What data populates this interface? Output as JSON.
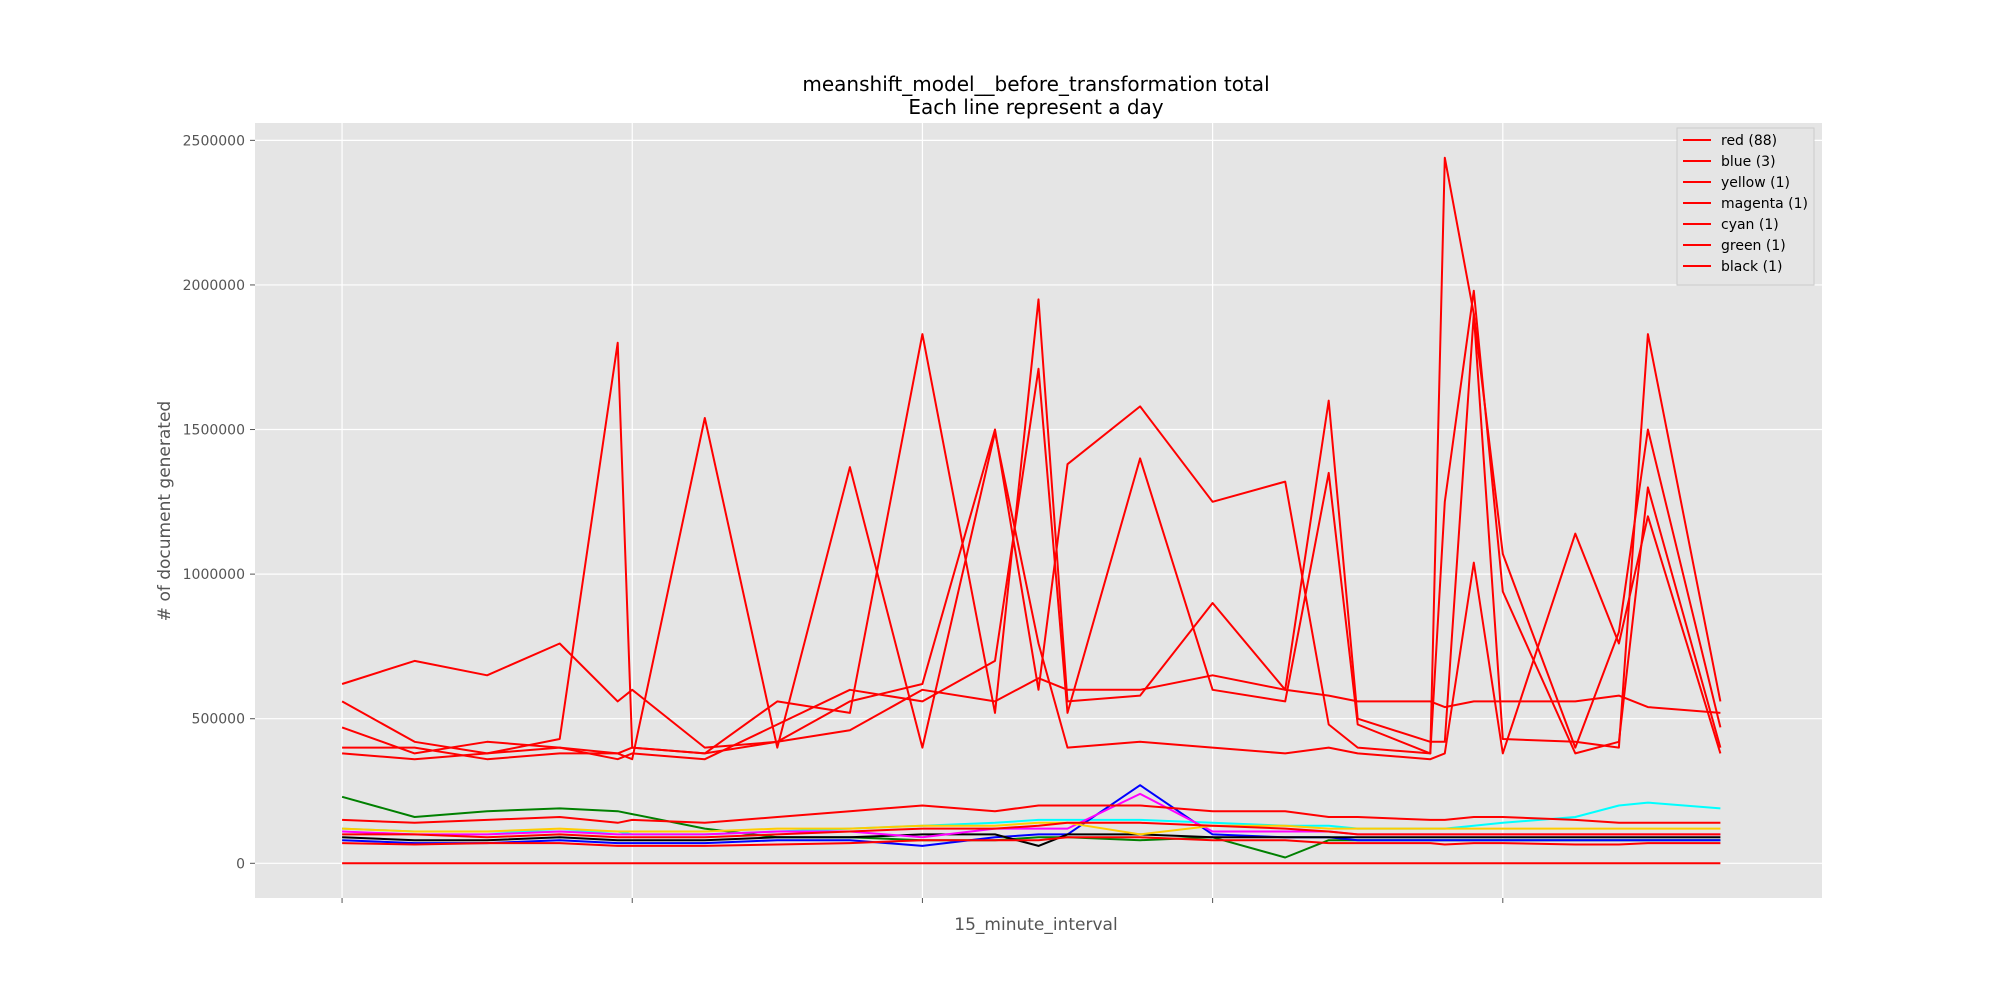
{
  "chart_data": {
    "type": "line",
    "title_line1": "meanshift_model__before_transformation total",
    "title_line2": "Each line represent a day",
    "xlabel": "15_minute_interval",
    "ylabel": "# of document generated",
    "ylim": [
      -120000,
      2560000
    ],
    "xlim": [
      -6,
      102
    ],
    "y_ticks": [
      0,
      500000,
      1000000,
      1500000,
      2000000,
      2500000
    ],
    "y_tick_labels": [
      "0",
      "500000",
      "1000000",
      "1500000",
      "2000000",
      "2500000"
    ],
    "x_ticks": [
      0,
      20,
      40,
      60,
      80
    ],
    "grid": true,
    "legend_position": "top-right",
    "legend": [
      {
        "label": "red (88)",
        "color": "#ff0000"
      },
      {
        "label": "blue (3)",
        "color": "#ff0000"
      },
      {
        "label": "yellow (1)",
        "color": "#ff0000"
      },
      {
        "label": "magenta (1)",
        "color": "#ff0000"
      },
      {
        "label": "cyan (1)",
        "color": "#ff0000"
      },
      {
        "label": "green (1)",
        "color": "#ff0000"
      },
      {
        "label": "black (1)",
        "color": "#ff0000"
      }
    ],
    "x": [
      0,
      5,
      10,
      15,
      19,
      20,
      25,
      30,
      35,
      40,
      45,
      48,
      50,
      55,
      60,
      65,
      68,
      70,
      75,
      76,
      78,
      80,
      85,
      88,
      90,
      95
    ],
    "series": [
      {
        "name": "red",
        "color": "#ff0000",
        "values": [
          560000,
          420000,
          380000,
          430000,
          1800000,
          400000,
          380000,
          560000,
          520000,
          1830000,
          520000,
          1950000,
          560000,
          580000,
          900000,
          600000,
          1600000,
          500000,
          420000,
          420000,
          1900000,
          430000,
          420000,
          400000,
          1830000,
          560000
        ]
      },
      {
        "name": "red",
        "color": "#ff0000",
        "values": [
          470000,
          380000,
          420000,
          400000,
          360000,
          380000,
          360000,
          480000,
          600000,
          560000,
          700000,
          1710000,
          520000,
          1400000,
          600000,
          560000,
          1350000,
          480000,
          380000,
          2440000,
          1900000,
          1070000,
          400000,
          800000,
          1500000,
          470000
        ]
      },
      {
        "name": "red",
        "color": "#ff0000",
        "values": [
          400000,
          400000,
          360000,
          380000,
          380000,
          400000,
          380000,
          420000,
          560000,
          620000,
          1500000,
          600000,
          1380000,
          1580000,
          1250000,
          1320000,
          480000,
          400000,
          380000,
          1250000,
          1980000,
          940000,
          380000,
          420000,
          1300000,
          400000
        ]
      },
      {
        "name": "red",
        "color": "#ff0000",
        "values": [
          620000,
          700000,
          650000,
          760000,
          560000,
          600000,
          400000,
          420000,
          460000,
          600000,
          560000,
          640000,
          600000,
          600000,
          650000,
          600000,
          580000,
          560000,
          560000,
          540000,
          560000,
          560000,
          560000,
          580000,
          540000,
          520000
        ]
      },
      {
        "name": "red",
        "color": "#ff0000",
        "values": [
          380000,
          360000,
          380000,
          400000,
          380000,
          360000,
          1540000,
          400000,
          1370000,
          400000,
          1490000,
          760000,
          400000,
          420000,
          400000,
          380000,
          400000,
          380000,
          360000,
          380000,
          1040000,
          380000,
          1140000,
          760000,
          1200000,
          380000
        ]
      },
      {
        "name": "red",
        "color": "#ff0000",
        "values": [
          150000,
          140000,
          150000,
          160000,
          140000,
          150000,
          140000,
          160000,
          180000,
          200000,
          180000,
          200000,
          200000,
          200000,
          180000,
          180000,
          160000,
          160000,
          150000,
          150000,
          160000,
          160000,
          150000,
          140000,
          140000,
          140000
        ]
      },
      {
        "name": "red",
        "color": "#ff0000",
        "values": [
          100000,
          100000,
          90000,
          100000,
          90000,
          90000,
          90000,
          100000,
          110000,
          120000,
          120000,
          130000,
          140000,
          140000,
          130000,
          120000,
          110000,
          100000,
          100000,
          100000,
          100000,
          100000,
          100000,
          100000,
          100000,
          100000
        ]
      },
      {
        "name": "red",
        "color": "#ff0000",
        "values": [
          70000,
          65000,
          70000,
          70000,
          60000,
          60000,
          60000,
          65000,
          70000,
          80000,
          80000,
          80000,
          90000,
          90000,
          80000,
          80000,
          70000,
          70000,
          70000,
          65000,
          70000,
          70000,
          65000,
          65000,
          70000,
          70000
        ]
      },
      {
        "name": "red",
        "color": "#ff0000",
        "values": [
          0,
          0,
          0,
          0,
          0,
          0,
          0,
          0,
          0,
          0,
          0,
          0,
          0,
          0,
          0,
          0,
          0,
          0,
          0,
          0,
          0,
          0,
          0,
          0,
          0,
          0
        ]
      },
      {
        "name": "green",
        "color": "#008000",
        "values": [
          230000,
          160000,
          180000,
          190000,
          180000,
          170000,
          120000,
          90000,
          90000,
          80000,
          80000,
          90000,
          90000,
          80000,
          90000,
          20000,
          80000,
          80000,
          80000,
          80000,
          80000,
          80000,
          80000,
          80000,
          80000,
          80000
        ]
      },
      {
        "name": "cyan",
        "color": "#00ffff",
        "values": [
          120000,
          110000,
          110000,
          110000,
          110000,
          100000,
          100000,
          110000,
          120000,
          130000,
          140000,
          150000,
          150000,
          150000,
          140000,
          130000,
          130000,
          120000,
          120000,
          120000,
          130000,
          140000,
          160000,
          200000,
          210000,
          190000
        ]
      },
      {
        "name": "blue",
        "color": "#0000ff",
        "values": [
          80000,
          70000,
          70000,
          80000,
          70000,
          70000,
          70000,
          80000,
          80000,
          60000,
          90000,
          100000,
          100000,
          270000,
          100000,
          90000,
          90000,
          80000,
          80000,
          80000,
          80000,
          80000,
          80000,
          80000,
          80000,
          80000
        ]
      },
      {
        "name": "black",
        "color": "#000000",
        "values": [
          90000,
          80000,
          80000,
          90000,
          80000,
          80000,
          80000,
          90000,
          90000,
          100000,
          100000,
          60000,
          100000,
          100000,
          90000,
          90000,
          90000,
          90000,
          90000,
          90000,
          90000,
          90000,
          90000,
          90000,
          90000,
          90000
        ]
      },
      {
        "name": "magenta",
        "color": "#ff00ff",
        "values": [
          110000,
          100000,
          100000,
          110000,
          100000,
          100000,
          100000,
          110000,
          110000,
          90000,
          120000,
          120000,
          120000,
          240000,
          110000,
          110000,
          110000,
          100000,
          100000,
          100000,
          100000,
          100000,
          100000,
          100000,
          100000,
          100000
        ]
      },
      {
        "name": "yellow",
        "color": "#ffcc00",
        "values": [
          120000,
          110000,
          110000,
          120000,
          110000,
          110000,
          110000,
          120000,
          120000,
          130000,
          130000,
          140000,
          140000,
          100000,
          130000,
          130000,
          120000,
          120000,
          120000,
          120000,
          120000,
          120000,
          120000,
          120000,
          120000,
          120000
        ]
      }
    ]
  }
}
